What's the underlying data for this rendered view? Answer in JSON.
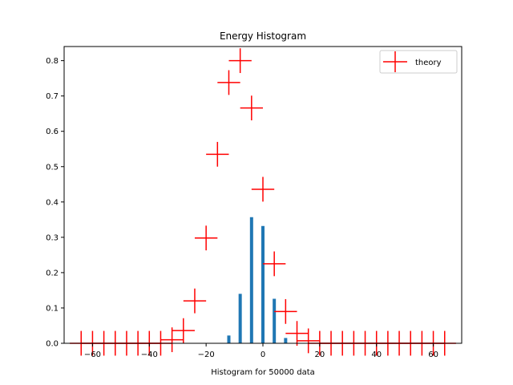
{
  "chart_data": {
    "type": "bar",
    "title": "Energy Histogram",
    "xlabel": "Histogram for 50000 data",
    "ylabel": "",
    "xlim": [
      -70,
      70
    ],
    "ylim": [
      0,
      0.84
    ],
    "xticks": [
      -60,
      -40,
      -20,
      0,
      20,
      40,
      60
    ],
    "yticks": [
      0.0,
      0.1,
      0.2,
      0.3,
      0.4,
      0.5,
      0.6,
      0.7,
      0.8
    ],
    "grid": false,
    "legend": {
      "placement": "top-right",
      "entries": [
        "theory"
      ]
    },
    "colors": {
      "histogram": "#1f77b4",
      "theory": "#ff0000"
    },
    "histogram": {
      "x": [
        -12,
        -8,
        -4,
        0,
        4,
        8,
        12
      ],
      "values": [
        0.022,
        0.14,
        0.357,
        0.332,
        0.126,
        0.015,
        0.001
      ]
    },
    "series": [
      {
        "name": "theory",
        "x": [
          -64,
          -60,
          -56,
          -52,
          -48,
          -44,
          -40,
          -36,
          -32,
          -28,
          -24,
          -20,
          -16,
          -12,
          -8,
          -4,
          0,
          4,
          8,
          12,
          16,
          20,
          24,
          28,
          32,
          36,
          40,
          44,
          48,
          52,
          56,
          60,
          64
        ],
        "values": [
          0,
          0,
          0,
          0,
          0,
          0,
          0,
          0,
          0.01,
          0.036,
          0.12,
          0.298,
          0.535,
          0.738,
          0.8,
          0.666,
          0.436,
          0.225,
          0.09,
          0.028,
          0.007,
          0,
          0,
          0,
          0,
          0,
          0,
          0,
          0,
          0,
          0,
          0,
          0
        ],
        "xerr": 4,
        "yerr": 0.035
      }
    ]
  }
}
